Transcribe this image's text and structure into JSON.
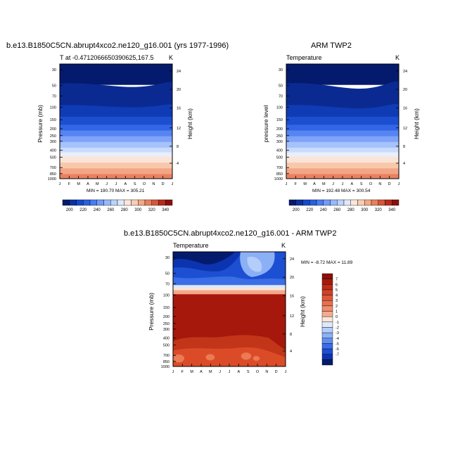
{
  "panels": [
    {
      "title": "b.e13.B1850C5CN.abrupt4xco2.ne120_g16.001 (yrs 1977-1996)",
      "left_label": "T at -0.4712066650390625,167.5",
      "right_label": "K",
      "ylabel": "Pressure (mb)",
      "ylabel_right": "Height (km)",
      "minmax": "MIN = 190.70 MAX = 305.21"
    },
    {
      "title": "ARM TWP2",
      "left_label": "Temperature",
      "right_label": "K",
      "ylabel": "pressure level",
      "ylabel_right": "Height (km)",
      "minmax": "MIN = 192.48 MAX = 300.54"
    },
    {
      "title": "b.e13.B1850C5CN.abrupt4xco2.ne120_g16.001 - ARM TWP2",
      "left_label": "Temperature",
      "right_label": "K",
      "ylabel": "Pressure (mb)",
      "ylabel_right": "Height (km)",
      "minmax": "MIN =  -8.72 MAX =  11.89"
    }
  ],
  "chart_data": [
    {
      "type": "heatmap",
      "title": "b.e13.B1850C5CN.abrupt4xco2.ne120_g16.001 (yrs 1977-1996)",
      "xlabel": "",
      "ylabel": "Pressure (mb)",
      "x_ticklabels": [
        "J",
        "F",
        "M",
        "A",
        "M",
        "J",
        "J",
        "A",
        "S",
        "O",
        "N",
        "D",
        "J"
      ],
      "y_ticks": [
        30,
        50,
        70,
        100,
        150,
        200,
        250,
        300,
        400,
        500,
        700,
        850,
        1000
      ],
      "y_right_ticks": [
        24,
        20,
        16,
        12,
        8,
        4
      ],
      "ylim": [
        30,
        1000
      ],
      "min": 190.7,
      "max": 305.21,
      "colorbar": {
        "levels": [
          200,
          220,
          240,
          260,
          280,
          300,
          320,
          340
        ],
        "colors": [
          "#031a6d",
          "#0a32a0",
          "#1549c8",
          "#2a60e0",
          "#4a7df0",
          "#709cf6",
          "#97b9fa",
          "#bcd3fc",
          "#dfe9fb",
          "#fbe6d8",
          "#f9cdb3",
          "#f4a987",
          "#ea7f5c",
          "#d8553a",
          "#b72b1d",
          "#8c1008"
        ]
      }
    },
    {
      "type": "heatmap",
      "title": "ARM TWP2",
      "xlabel": "",
      "ylabel": "pressure level",
      "x_ticklabels": [
        "J",
        "F",
        "M",
        "A",
        "M",
        "J",
        "J",
        "A",
        "S",
        "O",
        "N",
        "D",
        "J"
      ],
      "y_ticks": [
        30,
        50,
        70,
        100,
        150,
        200,
        250,
        300,
        400,
        500,
        700,
        850,
        1000
      ],
      "y_right_ticks": [
        24,
        20,
        16,
        12,
        8,
        4
      ],
      "ylim": [
        30,
        1000
      ],
      "min": 192.48,
      "max": 300.54,
      "colorbar": {
        "levels": [
          200,
          220,
          240,
          260,
          280,
          300,
          320,
          340
        ],
        "colors": [
          "#031a6d",
          "#0a32a0",
          "#1549c8",
          "#2a60e0",
          "#4a7df0",
          "#709cf6",
          "#97b9fa",
          "#bcd3fc",
          "#dfe9fb",
          "#fbe6d8",
          "#f9cdb3",
          "#f4a987",
          "#ea7f5c",
          "#d8553a",
          "#b72b1d",
          "#8c1008"
        ]
      }
    },
    {
      "type": "heatmap",
      "title": "b.e13.B1850C5CN.abrupt4xco2.ne120_g16.001 - ARM TWP2",
      "xlabel": "",
      "ylabel": "Pressure (mb)",
      "x_ticklabels": [
        "J",
        "F",
        "M",
        "A",
        "M",
        "J",
        "J",
        "A",
        "S",
        "O",
        "N",
        "D",
        "J"
      ],
      "y_ticks": [
        30,
        50,
        70,
        100,
        150,
        200,
        250,
        300,
        400,
        500,
        700,
        850,
        1000
      ],
      "y_right_ticks": [
        24,
        20,
        16,
        12,
        8,
        4
      ],
      "ylim": [
        30,
        1000
      ],
      "min": -8.72,
      "max": 11.89,
      "colorbar": {
        "levels": [
          7,
          6,
          5,
          4,
          3,
          2,
          1,
          0,
          -1,
          -2,
          -3,
          -4,
          -5,
          -6,
          -7
        ],
        "colors": [
          "#8c1008",
          "#a51a0f",
          "#be2c1a",
          "#cf4128",
          "#dc573a",
          "#e6714f",
          "#ef8d6d",
          "#f5ab8f",
          "#fbe6d8",
          "#dfe9fb",
          "#b5cdfa",
          "#8cb0f6",
          "#5f8ef0",
          "#3a6de6",
          "#1d4fd3",
          "#0c34b0",
          "#031a6d"
        ]
      }
    }
  ]
}
